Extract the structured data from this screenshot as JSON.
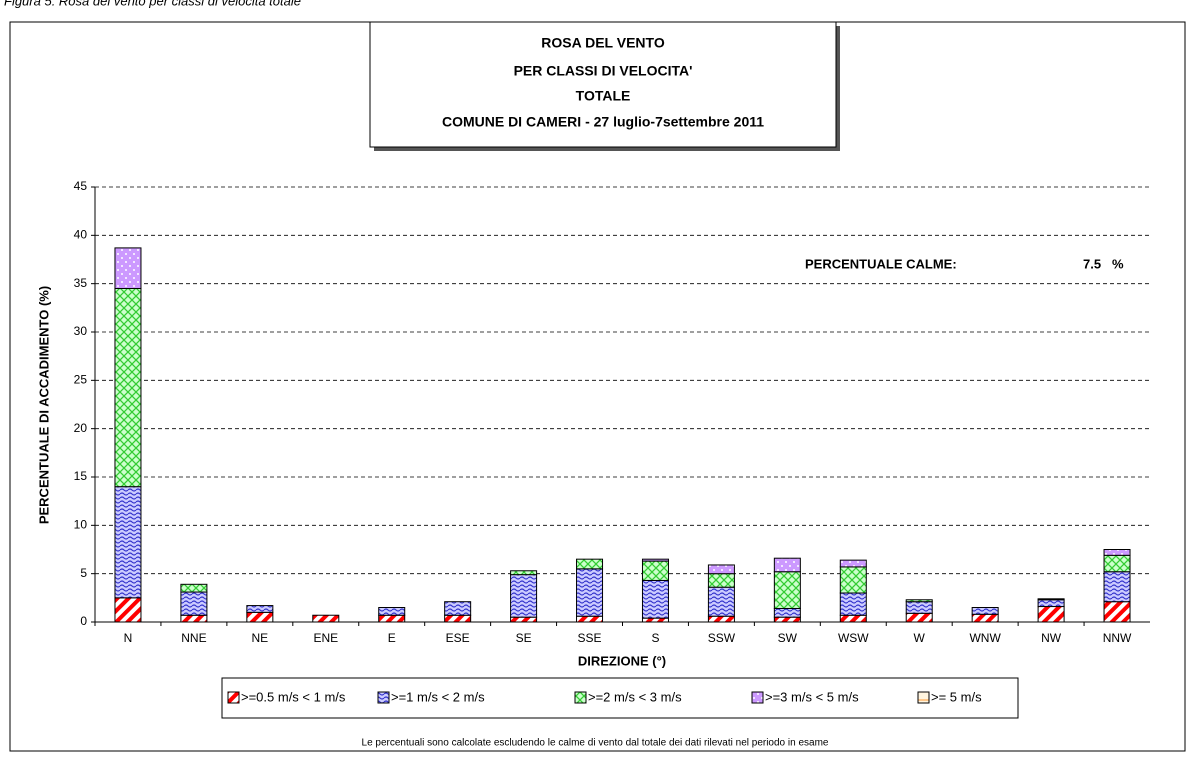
{
  "caption": "Figura 5: Rosa del vento per classi di velocità totale",
  "chart_data": {
    "type": "stacked_bar",
    "title": [
      "ROSA DEL VENTO",
      "PER CLASSI DI VELOCITA'",
      "TOTALE",
      "COMUNE DI CAMERI - 27 luglio-7settembre 2011"
    ],
    "x_label": "DIREZIONE (°)",
    "y_label": "PERCENTUALE DI ACCADIMENTO (%)",
    "categories": [
      "N",
      "NNE",
      "NE",
      "ENE",
      "E",
      "ESE",
      "SE",
      "SSE",
      "S",
      "SSW",
      "SW",
      "WSW",
      "W",
      "WNW",
      "NW",
      "NNW"
    ],
    "series": [
      {
        "name": ">=0.5 m/s < 1 m/s",
        "color": "#ff0000",
        "values": [
          2.5,
          0.7,
          1.0,
          0.7,
          0.7,
          0.7,
          0.5,
          0.6,
          0.4,
          0.6,
          0.5,
          0.7,
          0.9,
          0.8,
          1.6,
          2.1
        ]
      },
      {
        "name": ">=1 m/s < 2 m/s",
        "color": "#3333cc",
        "values": [
          11.5,
          2.4,
          0.7,
          0,
          0.8,
          1.4,
          4.4,
          4.9,
          3.9,
          3.0,
          0.9,
          2.3,
          1.2,
          0.7,
          0.7,
          3.1
        ]
      },
      {
        "name": ">=2 m/s < 3 m/s",
        "color": "#33cc33",
        "values": [
          20.5,
          0.8,
          0,
          0,
          0,
          0,
          0.4,
          1.0,
          2.0,
          1.4,
          3.8,
          2.7,
          0.2,
          0,
          0.1,
          1.7
        ]
      },
      {
        "name": ">=3 m/s < 5 m/s",
        "color": "#cc99ff",
        "values": [
          4.2,
          0,
          0,
          0,
          0,
          0,
          0,
          0,
          0.2,
          0.9,
          1.4,
          0.7,
          0,
          0,
          0,
          0.6
        ]
      },
      {
        "name": ">= 5 m/s",
        "color": "#ff9933",
        "values": [
          0,
          0,
          0,
          0,
          0,
          0,
          0,
          0,
          0,
          0,
          0,
          0,
          0,
          0,
          0,
          0
        ]
      }
    ],
    "ylim": [
      0,
      45
    ],
    "yticks": [
      0,
      5,
      10,
      15,
      20,
      25,
      30,
      35,
      40,
      45
    ],
    "grid": true,
    "annotation": {
      "label": "PERCENTUALE CALME:",
      "value": 7.5,
      "unit": "%"
    },
    "footnote": "Le percentuali sono calcolate escludendo le calme di vento dal totale dei dati rilevati nel periodo in esame"
  }
}
